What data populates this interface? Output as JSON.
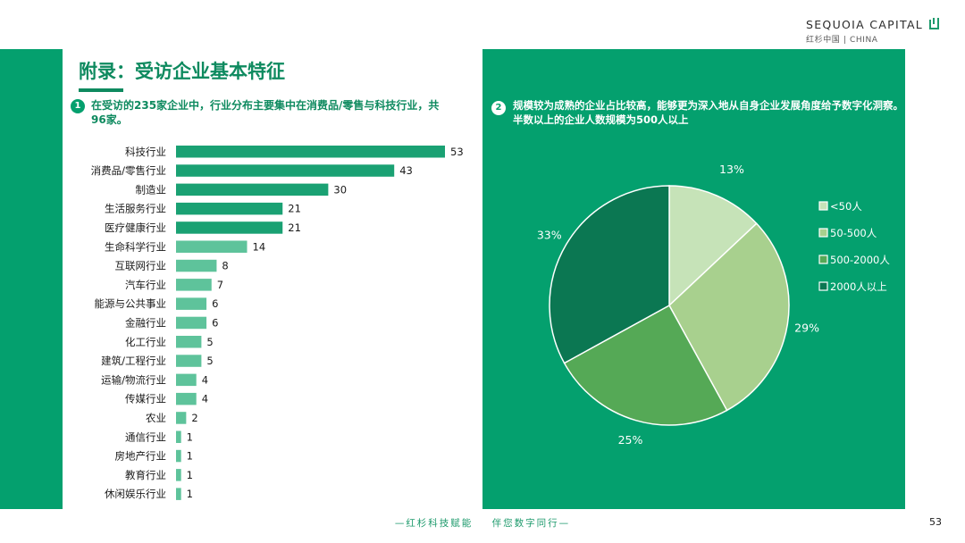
{
  "logo": {
    "main": "SEQUOIA CAPITAL",
    "sub": "红杉中国 | CHINA"
  },
  "title": "附录：受访企业基本特征",
  "note1": {
    "num": "1",
    "text": "在受访的235家企业中，行业分布主要集中在消费品/零售与科技行业，共96家。"
  },
  "note2": {
    "num": "2",
    "text": "规模较为成熟的企业占比较高，能够更为深入地从自身企业发展角度给予数字化洞察。半数以上的企业人数规模为500人以上"
  },
  "colors": {
    "panel": "#04a06e",
    "bar_dark": "#1aa173",
    "bar_light": "#5ec39b"
  },
  "chart_data": [
    {
      "type": "bar",
      "orientation": "horizontal",
      "categories": [
        "科技行业",
        "消费品/零售行业",
        "制造业",
        "生活服务行业",
        "医疗健康行业",
        "生命科学行业",
        "互联网行业",
        "汽车行业",
        "能源与公共事业",
        "金融行业",
        "化工行业",
        "建筑/工程行业",
        "运输/物流行业",
        "传媒行业",
        "农业",
        "通信行业",
        "房地产行业",
        "教育行业",
        "休闲娱乐行业"
      ],
      "values": [
        53,
        43,
        30,
        21,
        21,
        14,
        8,
        7,
        6,
        6,
        5,
        5,
        4,
        4,
        2,
        1,
        1,
        1,
        1
      ],
      "data_labels": [
        "53",
        "43",
        "30",
        "21",
        "21",
        "14",
        "8",
        "7",
        "6",
        "6",
        "5",
        "5",
        "4",
        "4",
        "2",
        "1",
        "1",
        "1",
        "1"
      ],
      "xlim": [
        0,
        55
      ],
      "grid": false
    },
    {
      "type": "pie",
      "categories": [
        "<50人",
        "50-500人",
        "500-2000人",
        "2000人以上"
      ],
      "values": [
        13,
        29,
        25,
        33
      ],
      "data_labels": [
        "13%",
        "29%",
        "25%",
        "33%"
      ],
      "colors": [
        "#c6e3b8",
        "#a8d08e",
        "#55a956",
        "#0b7752"
      ],
      "legend": "right"
    }
  ],
  "footer": {
    "slogan": "—红杉科技赋能    伴您数字同行—",
    "page": "53"
  }
}
